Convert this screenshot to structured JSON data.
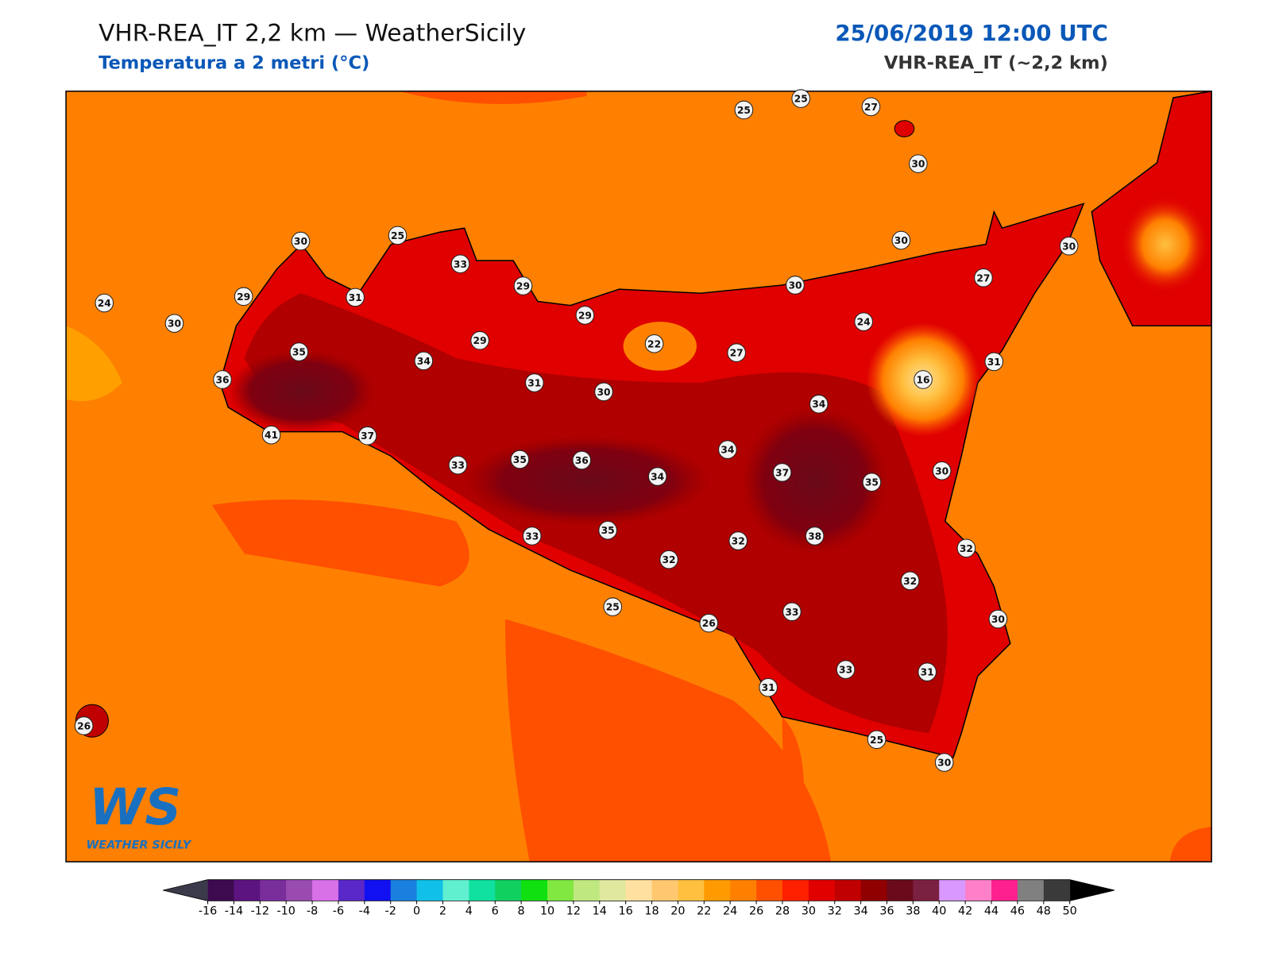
{
  "header": {
    "title": "VHR-REA_IT 2,2 km — WeatherSicily",
    "subtitle": "Temperatura a 2 metri (°C)",
    "datetime": "25/06/2019 12:00 UTC",
    "model": "VHR-REA_IT (~2,2 km)"
  },
  "stations": [
    25,
    25,
    27,
    30,
    30,
    25,
    33,
    29,
    29,
    31,
    24,
    30,
    29,
    29,
    22,
    35,
    34,
    27,
    24,
    30,
    30,
    30,
    27,
    31,
    16,
    36,
    31,
    30,
    34,
    41,
    37,
    34,
    33,
    35,
    36,
    34,
    37,
    35,
    30,
    33,
    35,
    32,
    38,
    32,
    32,
    32,
    25,
    26,
    33,
    30,
    33,
    31,
    31,
    26,
    25,
    30
  ],
  "logo": {
    "mark": "WS",
    "name": "WEATHER SICILY"
  },
  "colorbar": {
    "ticks": [
      -16,
      -14,
      -12,
      -10,
      -8,
      -6,
      -4,
      -2,
      0,
      2,
      4,
      6,
      8,
      10,
      12,
      14,
      16,
      18,
      20,
      22,
      24,
      26,
      28,
      30,
      32,
      34,
      36,
      38,
      40,
      42,
      44,
      46,
      48,
      50
    ],
    "colors": [
      "#3d0a4f",
      "#5c1480",
      "#7a2e9c",
      "#9a4bb0",
      "#d870e8",
      "#5a28c8",
      "#1010f0",
      "#1a80e0",
      "#10c0e8",
      "#60f0d0",
      "#10e0a0",
      "#10d060",
      "#10e010",
      "#80e840",
      "#c0e880",
      "#e0e8a0",
      "#ffe0a0",
      "#ffc870",
      "#ffc040",
      "#ff9a00",
      "#ff8000",
      "#ff5000",
      "#ff2000",
      "#e00000",
      "#c00000",
      "#900000",
      "#6a0a1a",
      "#7a2040",
      "#d898ff",
      "#ff80c8",
      "#ff2090",
      "#808080",
      "#3a3a3a"
    ],
    "under_color": "#3a3a4a",
    "over_color": "#000000"
  }
}
